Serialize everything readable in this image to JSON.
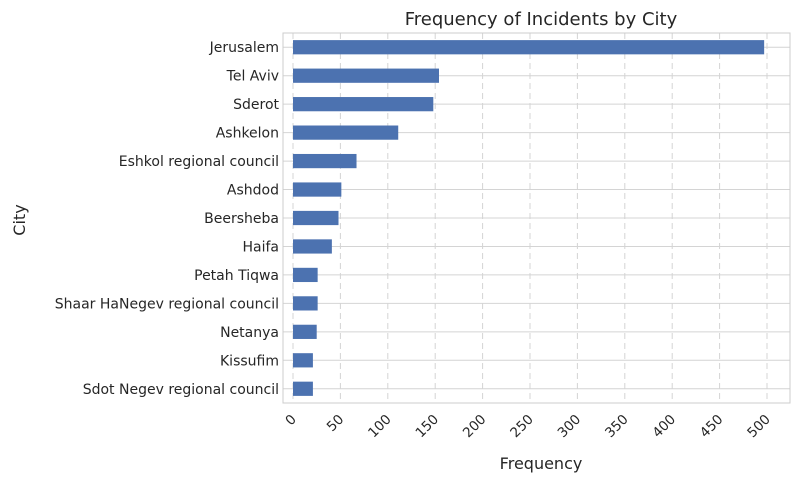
{
  "chart_data": {
    "type": "bar",
    "orientation": "horizontal",
    "title": "Frequency of Incidents by City",
    "xlabel": "Frequency",
    "ylabel": "City",
    "xlim": [
      0,
      510
    ],
    "xticks": [
      0,
      50,
      100,
      150,
      200,
      250,
      300,
      350,
      400,
      450,
      500
    ],
    "categories": [
      "Jerusalem",
      "Tel Aviv",
      "Sderot",
      "Ashkelon",
      "Eshkol regional council",
      "Ashdod",
      "Beersheba",
      "Haifa",
      "Petah Tiqwa",
      "Shaar HaNegev regional council",
      "Netanya",
      "Kissufim",
      "Sdot Negev regional council"
    ],
    "values": [
      497,
      154,
      148,
      111,
      67,
      51,
      48,
      41,
      26,
      26,
      25,
      21,
      21
    ],
    "bar_color": "#4c72b0",
    "grid": {
      "x": "dashed",
      "y": "solid"
    },
    "legend": "none"
  }
}
